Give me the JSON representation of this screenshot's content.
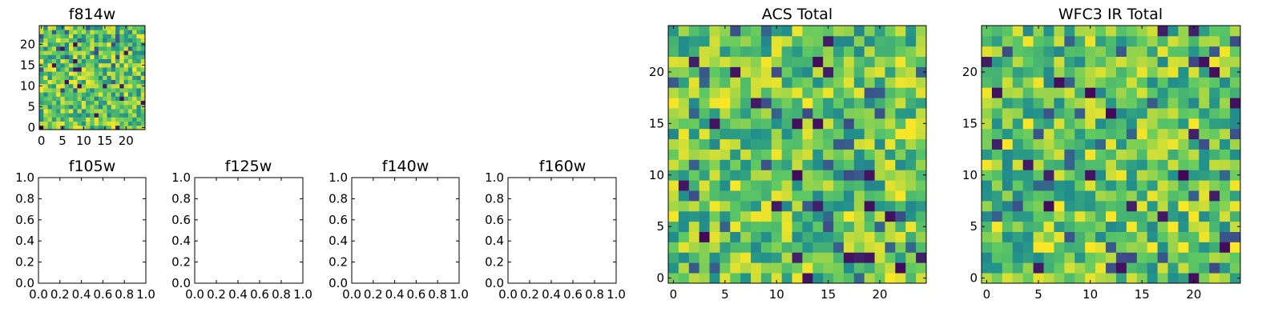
{
  "figure": {
    "background": "#ffffff",
    "colormap": "viridis",
    "colormap_stops": [
      "#440154",
      "#3b528b",
      "#21918c",
      "#5ec962",
      "#fde725"
    ]
  },
  "chart_data": [
    {
      "id": "f814w",
      "type": "heatmap",
      "title": "f814w",
      "grid_size": [
        25,
        25
      ],
      "xlim": [
        -0.5,
        24.5
      ],
      "ylim": [
        -0.5,
        24.5
      ],
      "xticks": [
        0,
        5,
        10,
        15,
        20
      ],
      "yticks": [
        0,
        5,
        10,
        15,
        20
      ],
      "values_description": "random noise field, mostly green-yellow with scattered dark cells",
      "value_range": [
        0,
        1
      ]
    },
    {
      "id": "f105w",
      "type": "heatmap",
      "title": "f105w",
      "empty": true,
      "xlim": [
        0.0,
        1.0
      ],
      "ylim": [
        0.0,
        1.0
      ],
      "xticks": [
        "0.0",
        "0.2",
        "0.4",
        "0.6",
        "0.8",
        "1.0"
      ],
      "yticks": [
        "0.0",
        "0.2",
        "0.4",
        "0.6",
        "0.8",
        "1.0"
      ]
    },
    {
      "id": "f125w",
      "type": "heatmap",
      "title": "f125w",
      "empty": true,
      "xlim": [
        0.0,
        1.0
      ],
      "ylim": [
        0.0,
        1.0
      ],
      "xticks": [
        "0.0",
        "0.2",
        "0.4",
        "0.6",
        "0.8",
        "1.0"
      ],
      "yticks": [
        "0.0",
        "0.2",
        "0.4",
        "0.6",
        "0.8",
        "1.0"
      ]
    },
    {
      "id": "f140w",
      "type": "heatmap",
      "title": "f140w",
      "empty": true,
      "xlim": [
        0.0,
        1.0
      ],
      "ylim": [
        0.0,
        1.0
      ],
      "xticks": [
        "0.0",
        "0.2",
        "0.4",
        "0.6",
        "0.8",
        "1.0"
      ],
      "yticks": [
        "0.0",
        "0.2",
        "0.4",
        "0.6",
        "0.8",
        "1.0"
      ]
    },
    {
      "id": "f160w",
      "type": "heatmap",
      "title": "f160w",
      "empty": true,
      "xlim": [
        0.0,
        1.0
      ],
      "ylim": [
        0.0,
        1.0
      ],
      "xticks": [
        "0.0",
        "0.2",
        "0.4",
        "0.6",
        "0.8",
        "1.0"
      ],
      "yticks": [
        "0.0",
        "0.2",
        "0.4",
        "0.6",
        "0.8",
        "1.0"
      ]
    },
    {
      "id": "acs_total",
      "type": "heatmap",
      "title": "ACS Total",
      "grid_size": [
        25,
        25
      ],
      "xlim": [
        -0.5,
        24.5
      ],
      "ylim": [
        -0.5,
        24.5
      ],
      "xticks": [
        0,
        5,
        10,
        15,
        20
      ],
      "yticks": [
        0,
        5,
        10,
        15,
        20
      ],
      "values_description": "random noise field, mostly green-yellow with scattered dark cells",
      "value_range": [
        0,
        1
      ]
    },
    {
      "id": "wfc3_ir_total",
      "type": "heatmap",
      "title": "WFC3 IR Total",
      "grid_size": [
        25,
        25
      ],
      "xlim": [
        -0.5,
        24.5
      ],
      "ylim": [
        -0.5,
        24.5
      ],
      "xticks": [
        0,
        5,
        10,
        15,
        20
      ],
      "yticks": [
        0,
        5,
        10,
        15,
        20
      ],
      "values_description": "random noise field, mostly green-yellow with scattered dark cells",
      "value_range": [
        0,
        1
      ]
    }
  ]
}
